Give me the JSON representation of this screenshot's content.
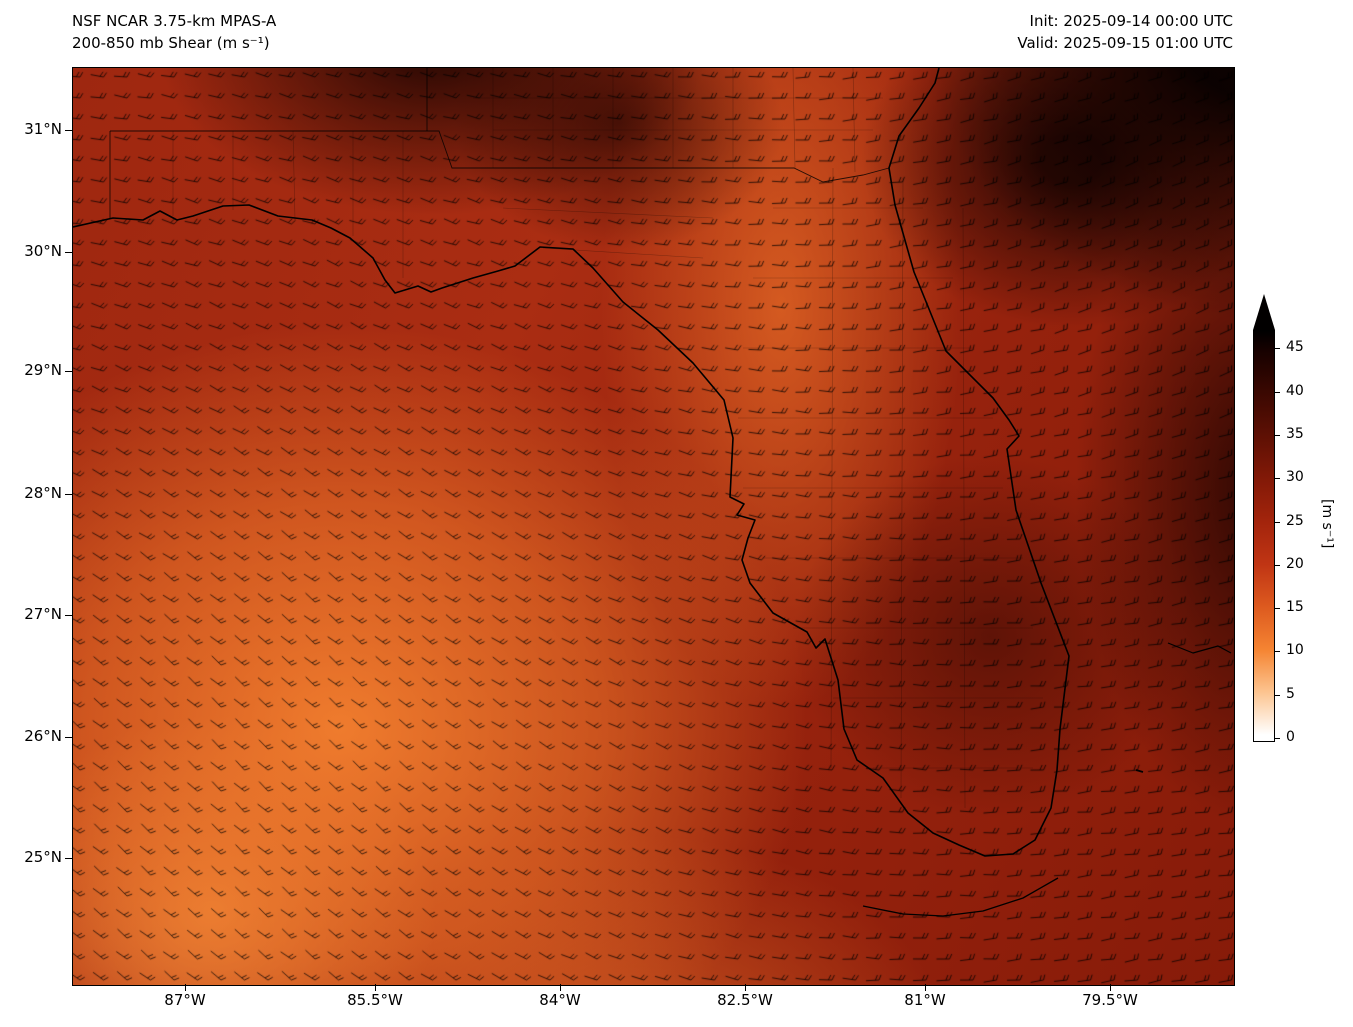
{
  "header": {
    "model": "NSF NCAR 3.75-km MPAS-A",
    "product": "200-850 mb Shear (m s⁻¹)",
    "init": "Init: 2025-09-14 00:00 UTC",
    "valid": "Valid: 2025-09-15 01:00 UTC"
  },
  "axes": {
    "y_ticks": [
      "31°N",
      "30°N",
      "29°N",
      "28°N",
      "27°N",
      "26°N",
      "25°N"
    ],
    "x_ticks": [
      "87°W",
      "85.5°W",
      "84°W",
      "82.5°W",
      "81°W",
      "79.5°W"
    ]
  },
  "colorbar": {
    "ticks": [
      "0",
      "5",
      "10",
      "15",
      "20",
      "25",
      "30",
      "35",
      "40",
      "45"
    ],
    "label": "[m s⁻¹]",
    "min_color": "#ffffff",
    "mid_color": "#dd5a1f",
    "max_color": "#000000",
    "extend": "max"
  },
  "chart_data": {
    "type": "heatmap",
    "title": "200-850 mb Shear (m s⁻¹)",
    "model": "NSF NCAR 3.75-km MPAS-A",
    "init_time": "2025-09-14 00:00 UTC",
    "valid_time": "2025-09-15 01:00 UTC",
    "xlabel": "",
    "ylabel": "",
    "x_tick_labels": [
      "87°W",
      "85.5°W",
      "84°W",
      "82.5°W",
      "81°W",
      "79.5°W"
    ],
    "y_tick_labels": [
      "31°N",
      "30°N",
      "29°N",
      "28°N",
      "27°N",
      "26°N",
      "25°N"
    ],
    "x_range_deg_west": [
      87.9,
      78.7
    ],
    "y_range_deg_north": [
      24.0,
      31.5
    ],
    "colorbar": {
      "label": "[m s⁻¹]",
      "ticks": [
        0,
        5,
        10,
        15,
        20,
        25,
        30,
        35,
        40,
        45
      ],
      "min": 0,
      "max": 47,
      "extend": "max"
    },
    "overlay": "wind barbs (200-850 mb shear vector), generally easterly-to-northeasterly shear pointing west-southwest",
    "geography": "Florida peninsula, Gulf coast panhandle, southern Georgia, Florida Keys coastlines with county boundaries",
    "approx_field_values": [
      {
        "region": "southwest Gulf of Mexico (86-88°W, 25-27.5°N)",
        "shear_ms": 10
      },
      {
        "region": "lower-left bright core (87°W, 26°N)",
        "shear_ms": 8
      },
      {
        "region": "central Gulf / offshore Big Bend",
        "shear_ms": 18
      },
      {
        "region": "north-central Florida orange band (82.5°W, 29-30°N)",
        "shear_ms": 14
      },
      {
        "region": "central Florida peninsula",
        "shear_ms": 18
      },
      {
        "region": "southeast Florida / east coast interior",
        "shear_ms": 28
      },
      {
        "region": "Atlantic east of Florida (79-80°W, 27-29°N)",
        "shear_ms": 32
      },
      {
        "region": "far northeast Atlantic corner (79°W, 31°N)",
        "shear_ms": 45
      },
      {
        "region": "panhandle / southern Georgia",
        "shear_ms": 28
      },
      {
        "region": "Florida Keys / Straits",
        "shear_ms": 24
      }
    ]
  }
}
